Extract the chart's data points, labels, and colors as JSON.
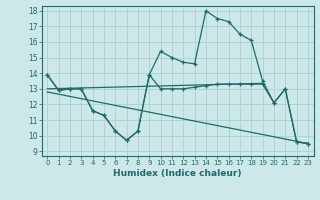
{
  "xlabel": "Humidex (Indice chaleur)",
  "bg_color": "#cce8e8",
  "line_color": "#1e6b6b",
  "grid_color": "#afd4d4",
  "xlim": [
    -0.5,
    23.5
  ],
  "ylim": [
    8.7,
    18.3
  ],
  "xticks": [
    0,
    1,
    2,
    3,
    4,
    5,
    6,
    7,
    8,
    9,
    10,
    11,
    12,
    13,
    14,
    15,
    16,
    17,
    18,
    19,
    20,
    21,
    22,
    23
  ],
  "yticks": [
    9,
    10,
    11,
    12,
    13,
    14,
    15,
    16,
    17,
    18
  ],
  "line1_x": [
    0,
    1,
    2,
    3,
    4,
    5,
    6,
    7,
    8,
    9,
    10,
    11,
    12,
    13,
    14,
    15,
    16,
    17,
    18,
    19,
    20,
    21,
    22,
    23
  ],
  "line1_y": [
    13.9,
    12.9,
    13.0,
    13.0,
    11.6,
    11.3,
    10.3,
    9.7,
    10.3,
    13.9,
    15.4,
    15.0,
    14.7,
    14.6,
    18.0,
    17.5,
    17.3,
    16.5,
    16.1,
    13.5,
    12.1,
    13.0,
    9.6,
    9.5
  ],
  "line2_x": [
    0,
    1,
    2,
    3,
    4,
    5,
    6,
    7,
    8,
    9,
    10,
    11,
    12,
    13,
    14,
    15,
    16,
    17,
    18,
    19,
    20,
    21,
    22,
    23
  ],
  "line2_y": [
    13.9,
    12.9,
    13.0,
    13.0,
    11.6,
    11.3,
    10.3,
    9.7,
    10.3,
    13.9,
    13.0,
    13.0,
    13.0,
    13.1,
    13.2,
    13.3,
    13.3,
    13.3,
    13.3,
    13.3,
    12.1,
    13.0,
    9.6,
    9.5
  ],
  "line3_x": [
    0,
    19
  ],
  "line3_y": [
    13.0,
    13.35
  ],
  "line4_x": [
    0,
    23
  ],
  "line4_y": [
    12.8,
    9.5
  ]
}
